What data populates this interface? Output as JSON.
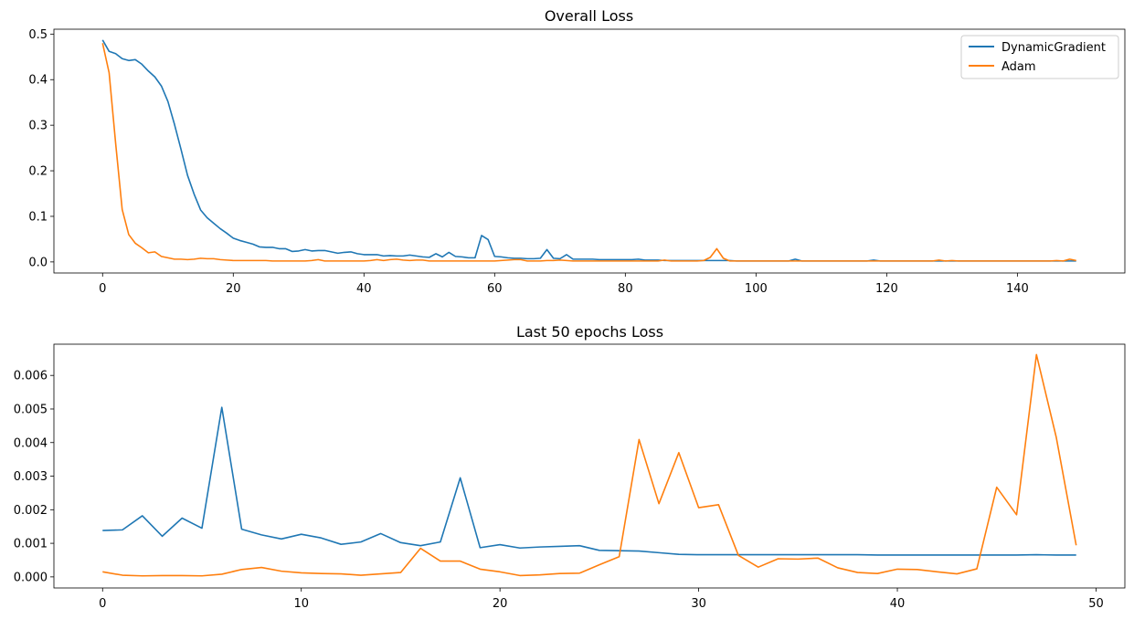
{
  "chart_data": [
    {
      "type": "line",
      "title": "Overall Loss",
      "xlabel": "",
      "ylabel": "",
      "xlim": [
        -7.45,
        156.45
      ],
      "ylim": [
        -0.0243,
        0.5107
      ],
      "xticks": [
        0,
        20,
        40,
        60,
        80,
        100,
        120,
        140
      ],
      "xtick_labels": [
        "0",
        "20",
        "40",
        "60",
        "80",
        "100",
        "120",
        "140"
      ],
      "yticks": [
        0.0,
        0.1,
        0.2,
        0.3,
        0.4,
        0.5
      ],
      "ytick_labels": [
        "0.0",
        "0.1",
        "0.2",
        "0.3",
        "0.4",
        "0.5"
      ],
      "grid": false,
      "legend": "upper right",
      "series": [
        {
          "name": "DynamicGradient",
          "color": "#1f77b4",
          "x": [
            0,
            1,
            2,
            3,
            4,
            5,
            6,
            7,
            8,
            9,
            10,
            11,
            12,
            13,
            14,
            15,
            16,
            17,
            18,
            19,
            20,
            21,
            22,
            23,
            24,
            25,
            26,
            27,
            28,
            29,
            30,
            31,
            32,
            33,
            34,
            35,
            36,
            37,
            38,
            39,
            40,
            41,
            42,
            43,
            44,
            45,
            46,
            47,
            48,
            49,
            50,
            51,
            52,
            53,
            54,
            55,
            56,
            57,
            58,
            59,
            60,
            61,
            62,
            63,
            64,
            65,
            66,
            67,
            68,
            69,
            70,
            71,
            72,
            73,
            74,
            75,
            76,
            77,
            78,
            79,
            80,
            81,
            82,
            83,
            84,
            85,
            86,
            87,
            88,
            89,
            90,
            91,
            92,
            93,
            94,
            95,
            96,
            97,
            98,
            99,
            100,
            101,
            102,
            103,
            104,
            105,
            106,
            107,
            108,
            109,
            110,
            111,
            112,
            113,
            114,
            115,
            116,
            117,
            118,
            119,
            120,
            121,
            122,
            123,
            124,
            125,
            126,
            127,
            128,
            129,
            130,
            131,
            132,
            133,
            134,
            135,
            136,
            137,
            138,
            139,
            140,
            141,
            142,
            143,
            144,
            145,
            146,
            147,
            148,
            149
          ],
          "y": [
            0.487,
            0.462,
            0.457,
            0.446,
            0.442,
            0.444,
            0.434,
            0.419,
            0.406,
            0.386,
            0.352,
            0.302,
            0.247,
            0.19,
            0.149,
            0.114,
            0.097,
            0.085,
            0.073,
            0.063,
            0.052,
            0.047,
            0.043,
            0.039,
            0.033,
            0.032,
            0.032,
            0.029,
            0.029,
            0.023,
            0.024,
            0.027,
            0.024,
            0.025,
            0.025,
            0.022,
            0.019,
            0.021,
            0.022,
            0.018,
            0.016,
            0.016,
            0.016,
            0.013,
            0.014,
            0.013,
            0.013,
            0.015,
            0.013,
            0.011,
            0.01,
            0.018,
            0.011,
            0.021,
            0.012,
            0.011,
            0.009,
            0.009,
            0.058,
            0.049,
            0.012,
            0.011,
            0.009,
            0.008,
            0.008,
            0.007,
            0.007,
            0.008,
            0.027,
            0.008,
            0.007,
            0.016,
            0.006,
            0.006,
            0.006,
            0.006,
            0.005,
            0.005,
            0.005,
            0.005,
            0.005,
            0.005,
            0.006,
            0.004,
            0.004,
            0.004,
            0.003,
            0.003,
            0.003,
            0.003,
            0.003,
            0.003,
            0.003,
            0.003,
            0.003,
            0.003,
            0.003,
            0.002,
            0.002,
            0.002,
            0.002,
            0.002,
            0.002,
            0.002,
            0.002,
            0.002,
            0.006,
            0.002,
            0.002,
            0.002,
            0.002,
            0.002,
            0.002,
            0.002,
            0.002,
            0.002,
            0.002,
            0.002,
            0.004,
            0.002,
            0.002,
            0.002,
            0.002,
            0.002,
            0.002,
            0.002,
            0.002,
            0.002,
            0.002,
            0.002,
            0.002,
            0.002,
            0.002,
            0.002,
            0.002,
            0.002,
            0.002,
            0.002,
            0.002,
            0.002,
            0.002,
            0.002,
            0.002,
            0.002,
            0.002,
            0.002,
            0.002,
            0.002,
            0.002,
            0.002
          ]
        },
        {
          "name": "Adam",
          "color": "#ff7f0e",
          "x": [
            0,
            1,
            2,
            3,
            4,
            5,
            6,
            7,
            8,
            9,
            10,
            11,
            12,
            13,
            14,
            15,
            16,
            17,
            18,
            19,
            20,
            21,
            22,
            23,
            24,
            25,
            26,
            27,
            28,
            29,
            30,
            31,
            32,
            33,
            34,
            35,
            36,
            37,
            38,
            39,
            40,
            41,
            42,
            43,
            44,
            45,
            46,
            47,
            48,
            49,
            50,
            51,
            52,
            53,
            54,
            55,
            56,
            57,
            58,
            59,
            60,
            61,
            62,
            63,
            64,
            65,
            66,
            67,
            68,
            69,
            70,
            71,
            72,
            73,
            74,
            75,
            76,
            77,
            78,
            79,
            80,
            81,
            82,
            83,
            84,
            85,
            86,
            87,
            88,
            89,
            90,
            91,
            92,
            93,
            94,
            95,
            96,
            97,
            98,
            99,
            100,
            101,
            102,
            103,
            104,
            105,
            106,
            107,
            108,
            109,
            110,
            111,
            112,
            113,
            114,
            115,
            116,
            117,
            118,
            119,
            120,
            121,
            122,
            123,
            124,
            125,
            126,
            127,
            128,
            129,
            130,
            131,
            132,
            133,
            134,
            135,
            136,
            137,
            138,
            139,
            140,
            141,
            142,
            143,
            144,
            145,
            146,
            147,
            148,
            149
          ],
          "y": [
            0.48,
            0.415,
            0.26,
            0.115,
            0.06,
            0.041,
            0.031,
            0.02,
            0.022,
            0.012,
            0.009,
            0.006,
            0.006,
            0.005,
            0.006,
            0.008,
            0.007,
            0.007,
            0.005,
            0.004,
            0.003,
            0.003,
            0.003,
            0.003,
            0.003,
            0.003,
            0.002,
            0.002,
            0.002,
            0.002,
            0.002,
            0.002,
            0.003,
            0.005,
            0.002,
            0.002,
            0.002,
            0.002,
            0.002,
            0.002,
            0.002,
            0.003,
            0.005,
            0.003,
            0.005,
            0.006,
            0.004,
            0.003,
            0.004,
            0.004,
            0.002,
            0.002,
            0.002,
            0.002,
            0.002,
            0.002,
            0.002,
            0.002,
            0.002,
            0.002,
            0.002,
            0.003,
            0.004,
            0.005,
            0.005,
            0.002,
            0.002,
            0.002,
            0.003,
            0.003,
            0.004,
            0.003,
            0.002,
            0.002,
            0.002,
            0.002,
            0.002,
            0.002,
            0.002,
            0.002,
            0.002,
            0.002,
            0.002,
            0.002,
            0.002,
            0.002,
            0.004,
            0.002,
            0.002,
            0.002,
            0.002,
            0.002,
            0.003,
            0.01,
            0.029,
            0.008,
            0.002,
            0.002,
            0.002,
            0.002,
            0.002,
            0.002,
            0.002,
            0.002,
            0.002,
            0.002,
            0.002,
            0.002,
            0.002,
            0.002,
            0.002,
            0.002,
            0.002,
            0.002,
            0.002,
            0.002,
            0.002,
            0.002,
            0.002,
            0.002,
            0.002,
            0.002,
            0.002,
            0.002,
            0.002,
            0.002,
            0.002,
            0.002,
            0.004,
            0.002,
            0.003,
            0.002,
            0.002,
            0.002,
            0.002,
            0.002,
            0.002,
            0.002,
            0.002,
            0.002,
            0.002,
            0.002,
            0.002,
            0.002,
            0.002,
            0.002,
            0.003,
            0.002,
            0.006,
            0.003
          ]
        }
      ]
    },
    {
      "type": "line",
      "title": "Last 50 epochs Loss",
      "xlabel": "",
      "ylabel": "",
      "xlim": [
        -2.45,
        51.45
      ],
      "ylim": [
        -0.00033,
        0.00693
      ],
      "xticks": [
        0,
        10,
        20,
        30,
        40,
        50
      ],
      "xtick_labels": [
        "0",
        "10",
        "20",
        "30",
        "40",
        "50"
      ],
      "yticks": [
        0.0,
        0.001,
        0.002,
        0.003,
        0.004,
        0.005,
        0.006
      ],
      "ytick_labels": [
        "0.000",
        "0.001",
        "0.002",
        "0.003",
        "0.004",
        "0.005",
        "0.006"
      ],
      "grid": false,
      "legend": "none",
      "series": [
        {
          "color": "#1f77b4",
          "x": [
            0,
            1,
            2,
            3,
            4,
            5,
            6,
            7,
            8,
            9,
            10,
            11,
            12,
            13,
            14,
            15,
            16,
            17,
            18,
            19,
            20,
            21,
            22,
            23,
            24,
            25,
            26,
            27,
            28,
            29,
            30,
            31,
            32,
            33,
            34,
            35,
            36,
            37,
            38,
            39,
            40,
            41,
            42,
            43,
            44,
            45,
            46,
            47,
            48,
            49
          ],
          "y": [
            0.00138,
            0.0014,
            0.00182,
            0.00121,
            0.00175,
            0.00145,
            0.00505,
            0.00142,
            0.00125,
            0.00113,
            0.00127,
            0.00116,
            0.00097,
            0.00104,
            0.00129,
            0.00102,
            0.00093,
            0.00104,
            0.00295,
            0.00087,
            0.00096,
            0.00086,
            0.00089,
            0.00091,
            0.00093,
            0.00079,
            0.00078,
            0.00077,
            0.00072,
            0.00067,
            0.00066,
            0.00066,
            0.00066,
            0.00066,
            0.00066,
            0.00066,
            0.00066,
            0.00066,
            0.00066,
            0.00065,
            0.00065,
            0.00065,
            0.00065,
            0.00065,
            0.00065,
            0.00065,
            0.00065,
            0.00066,
            0.00065,
            0.00065
          ]
        },
        {
          "color": "#ff7f0e",
          "x": [
            0,
            1,
            2,
            3,
            4,
            5,
            6,
            7,
            8,
            9,
            10,
            11,
            12,
            13,
            14,
            15,
            16,
            17,
            18,
            19,
            20,
            21,
            22,
            23,
            24,
            25,
            26,
            27,
            28,
            29,
            30,
            31,
            32,
            33,
            34,
            35,
            36,
            37,
            38,
            39,
            40,
            41,
            42,
            43,
            44,
            45,
            46,
            47,
            48,
            49
          ],
          "y": [
            0.00015,
            5e-05,
            3e-05,
            4e-05,
            4e-05,
            3e-05,
            8e-05,
            0.00022,
            0.00028,
            0.00017,
            0.00012,
            0.0001,
            9e-05,
            5e-05,
            9e-05,
            0.00013,
            0.00085,
            0.00047,
            0.00047,
            0.00023,
            0.00015,
            4e-05,
            6e-05,
            0.0001,
            0.00011,
            0.00036,
            0.0006,
            0.00409,
            0.00218,
            0.0037,
            0.00206,
            0.00215,
            0.00064,
            0.00029,
            0.00054,
            0.00053,
            0.00056,
            0.00027,
            0.00013,
            0.0001,
            0.00023,
            0.00022,
            0.00015,
            9e-05,
            0.00024,
            0.00267,
            0.00185,
            0.00662,
            0.00415,
            0.00094
          ]
        }
      ]
    }
  ]
}
